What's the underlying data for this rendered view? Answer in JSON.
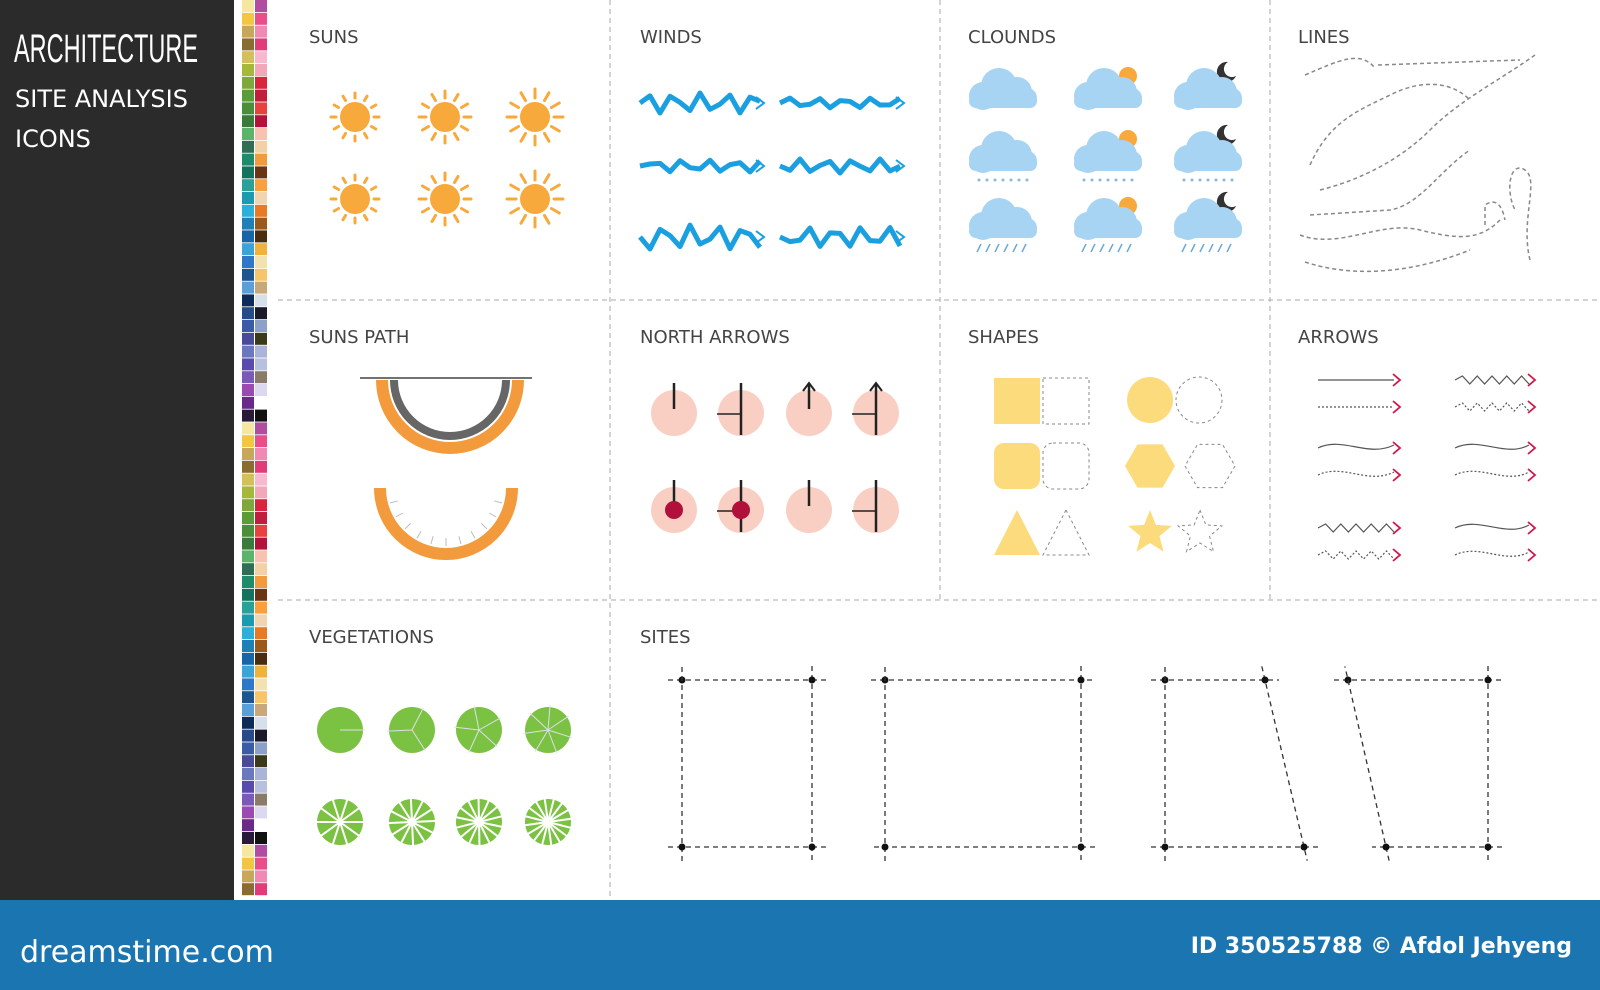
{
  "sidebar": {
    "title": "ARCHITECTURE",
    "subtitle": [
      "SITE ANALYSIS",
      "ICONS"
    ]
  },
  "sections": [
    {
      "title": "SUNS"
    },
    {
      "title": "WINDS"
    },
    {
      "title": "CLOUNDS"
    },
    {
      "title": "LINES"
    },
    {
      "title": "SUNS PATH"
    },
    {
      "title": "NORTH ARROWS"
    },
    {
      "title": "SHAPES"
    },
    {
      "title": "ARROWS"
    },
    {
      "title": "VEGETATIONS"
    },
    {
      "title": "SITES"
    }
  ],
  "footer": {
    "brand": "dreamstime.com",
    "credit": "ID 350525788 © Afdol Jehyeng"
  }
}
